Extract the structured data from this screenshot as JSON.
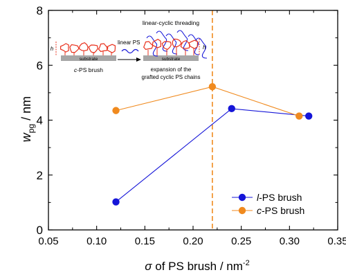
{
  "chart_data": {
    "type": "scatter",
    "xlabel": {
      "sigma": "σ",
      "rest": " of PS brush / nm",
      "sup": "-2"
    },
    "ylabel": {
      "main": "w",
      "sub": "pg",
      "rest": " / nm"
    },
    "xlim": [
      0.05,
      0.35
    ],
    "ylim": [
      0,
      8
    ],
    "xticks": [
      0.05,
      0.1,
      0.15,
      0.2,
      0.25,
      0.3,
      0.35
    ],
    "xtick_labels": [
      "0.05",
      "0.10",
      "0.15",
      "0.20",
      "0.25",
      "0.30",
      "0.35"
    ],
    "yticks": [
      0,
      2,
      4,
      6,
      8
    ],
    "ytick_labels": [
      "0",
      "2",
      "4",
      "6",
      "8"
    ],
    "vline_x": 0.22,
    "series": [
      {
        "name": "l-PS brush",
        "prefix": "l",
        "suffix": "-PS brush",
        "color": "#1515d8",
        "x": [
          0.12,
          0.24,
          0.32
        ],
        "y": [
          1.02,
          4.42,
          4.15
        ]
      },
      {
        "name": "c-PS brush",
        "prefix": "c",
        "suffix": "-PS brush",
        "color": "#f08a1e",
        "x": [
          0.12,
          0.22,
          0.31
        ],
        "y": [
          4.35,
          5.22,
          4.15
        ]
      }
    ],
    "legend_position": "bottom-right",
    "grid": false
  },
  "inset": {
    "substrate_label": "substrate",
    "brush_label_prefix": "c",
    "brush_label_suffix": "-PS brush",
    "linear_ps_label": "linear PS",
    "threading_label": "linear-cyclic threading",
    "expansion_line1": "expansion of the",
    "expansion_line2": "grafted cyclic PS chains",
    "height_label": "h",
    "chain_color": "#e8301c",
    "linear_color": "#1515d8",
    "substrate_color": "#a6a6a6"
  }
}
